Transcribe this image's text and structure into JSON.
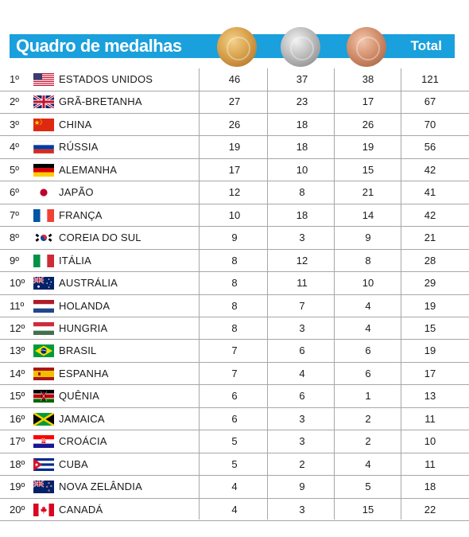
{
  "header": {
    "title": "Quadro de medalhas",
    "total_label": "Total",
    "medals": [
      {
        "name": "gold-medal-icon",
        "color": "#d9a24c"
      },
      {
        "name": "silver-medal-icon",
        "color": "#bdbdbd"
      },
      {
        "name": "bronze-medal-icon",
        "color": "#d48f6c"
      }
    ],
    "accent_color": "#1aa0dc"
  },
  "rows": [
    {
      "rank": "1º",
      "country": "ESTADOS UNIDOS",
      "flag": "usa-flag-icon",
      "gold": "46",
      "silver": "37",
      "bronze": "38",
      "total": "121"
    },
    {
      "rank": "2º",
      "country": "GRÃ-BRETANHA",
      "flag": "great-britain-flag-icon",
      "gold": "27",
      "silver": "23",
      "bronze": "17",
      "total": "67"
    },
    {
      "rank": "3º",
      "country": "CHINA",
      "flag": "china-flag-icon",
      "gold": "26",
      "silver": "18",
      "bronze": "26",
      "total": "70"
    },
    {
      "rank": "4º",
      "country": "RÚSSIA",
      "flag": "russia-flag-icon",
      "gold": "19",
      "silver": "18",
      "bronze": "19",
      "total": "56"
    },
    {
      "rank": "5º",
      "country": "ALEMANHA",
      "flag": "germany-flag-icon",
      "gold": "17",
      "silver": "10",
      "bronze": "15",
      "total": "42"
    },
    {
      "rank": "6º",
      "country": "JAPÃO",
      "flag": "japan-flag-icon",
      "gold": "12",
      "silver": "8",
      "bronze": "21",
      "total": "41"
    },
    {
      "rank": "7º",
      "country": "FRANÇA",
      "flag": "france-flag-icon",
      "gold": "10",
      "silver": "18",
      "bronze": "14",
      "total": "42"
    },
    {
      "rank": "8º",
      "country": "COREIA DO SUL",
      "flag": "south-korea-flag-icon",
      "gold": "9",
      "silver": "3",
      "bronze": "9",
      "total": "21"
    },
    {
      "rank": "9º",
      "country": "ITÁLIA",
      "flag": "italy-flag-icon",
      "gold": "8",
      "silver": "12",
      "bronze": "8",
      "total": "28"
    },
    {
      "rank": "10º",
      "country": "AUSTRÁLIA",
      "flag": "australia-flag-icon",
      "gold": "8",
      "silver": "11",
      "bronze": "10",
      "total": "29"
    },
    {
      "rank": "11º",
      "country": "HOLANDA",
      "flag": "netherlands-flag-icon",
      "gold": "8",
      "silver": "7",
      "bronze": "4",
      "total": "19"
    },
    {
      "rank": "12º",
      "country": "HUNGRIA",
      "flag": "hungary-flag-icon",
      "gold": "8",
      "silver": "3",
      "bronze": "4",
      "total": "15"
    },
    {
      "rank": "13º",
      "country": "BRASIL",
      "flag": "brazil-flag-icon",
      "gold": "7",
      "silver": "6",
      "bronze": "6",
      "total": "19"
    },
    {
      "rank": "14º",
      "country": "ESPANHA",
      "flag": "spain-flag-icon",
      "gold": "7",
      "silver": "4",
      "bronze": "6",
      "total": "17"
    },
    {
      "rank": "15º",
      "country": "QUÊNIA",
      "flag": "kenya-flag-icon",
      "gold": "6",
      "silver": "6",
      "bronze": "1",
      "total": "13"
    },
    {
      "rank": "16º",
      "country": "JAMAICA",
      "flag": "jamaica-flag-icon",
      "gold": "6",
      "silver": "3",
      "bronze": "2",
      "total": "11"
    },
    {
      "rank": "17º",
      "country": "CROÁCIA",
      "flag": "croatia-flag-icon",
      "gold": "5",
      "silver": "3",
      "bronze": "2",
      "total": "10"
    },
    {
      "rank": "18º",
      "country": "CUBA",
      "flag": "cuba-flag-icon",
      "gold": "5",
      "silver": "2",
      "bronze": "4",
      "total": "11"
    },
    {
      "rank": "19º",
      "country": "NOVA ZELÂNDIA",
      "flag": "new-zealand-flag-icon",
      "gold": "4",
      "silver": "9",
      "bronze": "5",
      "total": "18"
    },
    {
      "rank": "20º",
      "country": "CANADÁ",
      "flag": "canada-flag-icon",
      "gold": "4",
      "silver": "3",
      "bronze": "15",
      "total": "22"
    }
  ]
}
